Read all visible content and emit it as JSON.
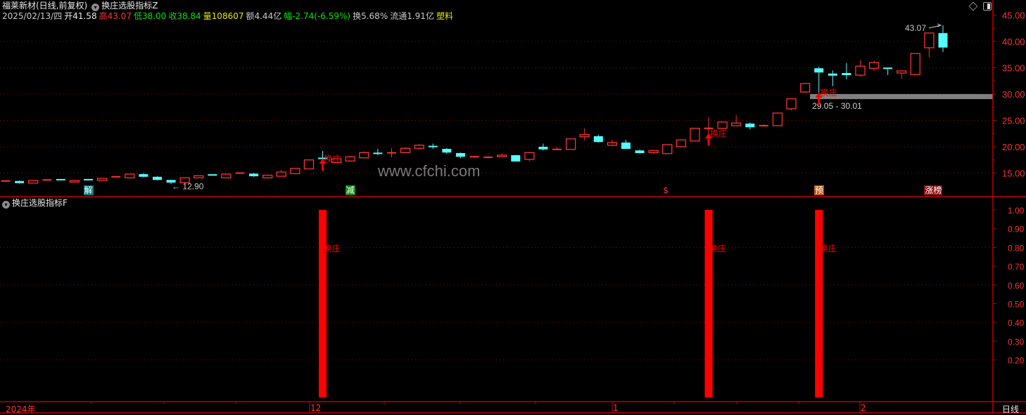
{
  "header": {
    "stock_title": "福莱新材(日线,前复权)",
    "indicator_main": "换庄选股指标Z",
    "date": "2025/02/13/四",
    "open": "开41.58",
    "high_label": "高",
    "high": "43.07",
    "low": "低38.00",
    "close": "收38.84",
    "volume": "量108607",
    "amount": "额4.44亿",
    "change": "幅-2.74(-6.59%)",
    "turnover": "换5.68%",
    "float_cap": "流通1.91亿",
    "sector": "塑料"
  },
  "toolbar_icons": [
    "diamond-icon",
    "panel-toggle-icon"
  ],
  "colors": {
    "up": "#ff3232",
    "down": "#54ffff",
    "axis": "#c00000",
    "band": "#808080",
    "signal": "#ff0000",
    "background": "#000000"
  },
  "watermark": "www.cfchi.com",
  "lower_panel": {
    "title": "换庄选股指标F"
  },
  "time_axis": {
    "labels": [
      "2024年",
      "12",
      "1",
      "2"
    ],
    "period": "日线"
  },
  "chart_data": [
    {
      "type": "candlestick",
      "title": "换庄选股指标Z",
      "ylim": [
        12,
        46
      ],
      "yticks": [
        "45.00",
        "40.00",
        "35.00",
        "30.00",
        "25.00",
        "20.00",
        "15.00"
      ],
      "ytick_values": [
        45,
        40,
        35,
        30,
        25,
        20,
        15
      ],
      "grid": true,
      "ohlc": [
        [
          13.45,
          13.55,
          13.35,
          13.5
        ],
        [
          13.5,
          13.6,
          13.0,
          13.1
        ],
        [
          13.1,
          13.65,
          13.05,
          13.6
        ],
        [
          13.65,
          13.75,
          13.6,
          13.7
        ],
        [
          13.75,
          13.85,
          13.6,
          13.7
        ],
        [
          13.3,
          13.65,
          13.25,
          13.6
        ],
        [
          13.75,
          13.85,
          13.6,
          13.7
        ],
        [
          13.6,
          14.05,
          13.55,
          14.0
        ],
        [
          14.1,
          14.35,
          14.05,
          14.3
        ],
        [
          14.1,
          14.85,
          14.0,
          14.8
        ],
        [
          14.8,
          15.0,
          14.2,
          14.3
        ],
        [
          14.3,
          14.45,
          13.6,
          13.7
        ],
        [
          13.7,
          13.75,
          12.9,
          13.2
        ],
        [
          13.2,
          14.2,
          13.1,
          14.1
        ],
        [
          14.1,
          14.55,
          14.05,
          14.5
        ],
        [
          14.65,
          14.7,
          14.5,
          14.6
        ],
        [
          14.1,
          14.85,
          14.05,
          14.8
        ],
        [
          14.8,
          15.0,
          14.75,
          15.0
        ],
        [
          14.9,
          15.0,
          14.3,
          14.4
        ],
        [
          14.1,
          14.65,
          14.0,
          14.6
        ],
        [
          14.4,
          15.6,
          14.3,
          15.2
        ],
        [
          14.9,
          15.9,
          14.85,
          15.9
        ],
        [
          15.8,
          17.5,
          15.75,
          17.5
        ],
        [
          17.8,
          19.2,
          16.5,
          17.6
        ],
        [
          17.0,
          17.8,
          16.9,
          17.7
        ],
        [
          17.3,
          18.3,
          17.1,
          18.1
        ],
        [
          17.9,
          19.1,
          17.8,
          18.9
        ],
        [
          18.75,
          19.6,
          18.4,
          18.7
        ],
        [
          18.75,
          19.7,
          18.0,
          18.85
        ],
        [
          18.9,
          19.9,
          18.8,
          19.7
        ],
        [
          19.7,
          20.5,
          19.5,
          20.3
        ],
        [
          20.05,
          20.6,
          19.6,
          20.0
        ],
        [
          19.6,
          19.75,
          18.7,
          18.9
        ],
        [
          18.8,
          18.9,
          17.8,
          18.1
        ],
        [
          17.9,
          18.3,
          17.8,
          18.1
        ],
        [
          17.95,
          18.2,
          17.8,
          18.0
        ],
        [
          18.1,
          18.7,
          18.0,
          18.4
        ],
        [
          18.4,
          18.45,
          17.2,
          17.2
        ],
        [
          17.6,
          18.9,
          17.3,
          18.9
        ],
        [
          20.0,
          20.6,
          19.3,
          19.5
        ],
        [
          19.45,
          19.9,
          19.35,
          19.5
        ],
        [
          19.5,
          21.5,
          19.45,
          21.5
        ],
        [
          21.9,
          23.5,
          21.2,
          22.3
        ],
        [
          22.0,
          22.3,
          20.8,
          20.9
        ],
        [
          20.3,
          21.3,
          20.1,
          20.8
        ],
        [
          20.8,
          21.3,
          19.6,
          19.6
        ],
        [
          19.3,
          19.5,
          18.7,
          18.8
        ],
        [
          18.9,
          19.4,
          18.6,
          19.3
        ],
        [
          18.7,
          20.5,
          18.6,
          20.4
        ],
        [
          20.0,
          21.4,
          19.9,
          21.3
        ],
        [
          21.1,
          23.6,
          21.0,
          23.5
        ],
        [
          23.4,
          25.6,
          21.3,
          23.5
        ],
        [
          23.5,
          24.8,
          23.4,
          24.7
        ],
        [
          24.0,
          26.0,
          23.9,
          24.5
        ],
        [
          24.4,
          24.6,
          23.3,
          23.7
        ],
        [
          23.95,
          24.3,
          23.8,
          24.0
        ],
        [
          24.0,
          26.5,
          23.9,
          26.4
        ],
        [
          27.2,
          29.2,
          26.9,
          29.1
        ],
        [
          30.4,
          32.1,
          30.2,
          32.0
        ],
        [
          34.9,
          35.2,
          29.05,
          34.1
        ],
        [
          33.9,
          34.5,
          31.5,
          33.5
        ],
        [
          34.0,
          35.9,
          32.8,
          33.6
        ],
        [
          33.6,
          36.4,
          33.3,
          35.3
        ],
        [
          34.9,
          36.3,
          34.4,
          36.0
        ],
        [
          34.9,
          35.0,
          33.6,
          34.8
        ],
        [
          34.0,
          34.5,
          32.9,
          34.4
        ],
        [
          33.7,
          37.7,
          33.7,
          37.7
        ],
        [
          38.8,
          41.6,
          37.0,
          41.6
        ],
        [
          41.58,
          43.07,
          38.0,
          38.84
        ]
      ],
      "annotations": {
        "low_label": "12.90",
        "low_index": 12,
        "high_label": "43.07",
        "high_index": 68,
        "band": {
          "from": 29.05,
          "to": 30.01,
          "label": "29.05 - 30.01",
          "start_index": 58
        }
      },
      "signals": {
        "label": "换庄",
        "indices": [
          23,
          51,
          59
        ]
      },
      "event_markers": [
        {
          "index": 6,
          "text": "解",
          "color": "#0a7f7f"
        },
        {
          "index": 25,
          "text": "减",
          "color": "#138a13"
        },
        {
          "index": 48,
          "text": "$",
          "color": "transparent"
        },
        {
          "index": 59,
          "text": "预",
          "color": "#c0560c"
        },
        {
          "index": 67,
          "text": "涨榜",
          "color": "#8a1010"
        }
      ]
    },
    {
      "type": "bar",
      "title": "换庄选股指标F",
      "ylim": [
        0,
        1.05
      ],
      "yticks": [
        "1.00",
        "0.90",
        "0.80",
        "0.70",
        "0.60",
        "0.50",
        "0.40",
        "0.30",
        "0.20"
      ],
      "ytick_values": [
        1.0,
        0.9,
        0.8,
        0.7,
        0.6,
        0.5,
        0.4,
        0.3,
        0.2
      ],
      "bars": [
        {
          "index": 23,
          "value": 1.0
        },
        {
          "index": 51,
          "value": 1.0
        },
        {
          "index": 59,
          "value": 1.0
        }
      ],
      "bar_label": "换庄"
    }
  ]
}
